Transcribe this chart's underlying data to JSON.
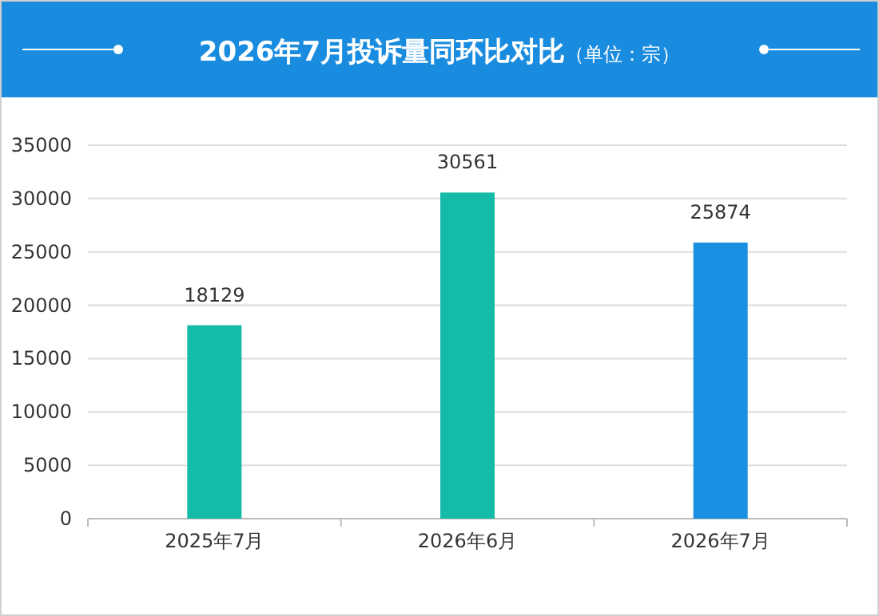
{
  "chart_data": {
    "type": "bar",
    "title": "2026年7月投诉量同环比对比",
    "subtitle": "（单位：宗）",
    "categories": [
      "2025年7月",
      "2026年6月",
      "2026年7月"
    ],
    "values": [
      18129,
      30561,
      25874
    ],
    "colors": [
      "#13bba8",
      "#13bba8",
      "#1a90e3"
    ],
    "ylim": [
      0,
      35000
    ],
    "yticks": [
      0,
      5000,
      10000,
      15000,
      20000,
      25000,
      30000,
      35000
    ],
    "grid": "y",
    "data_labels": true
  }
}
